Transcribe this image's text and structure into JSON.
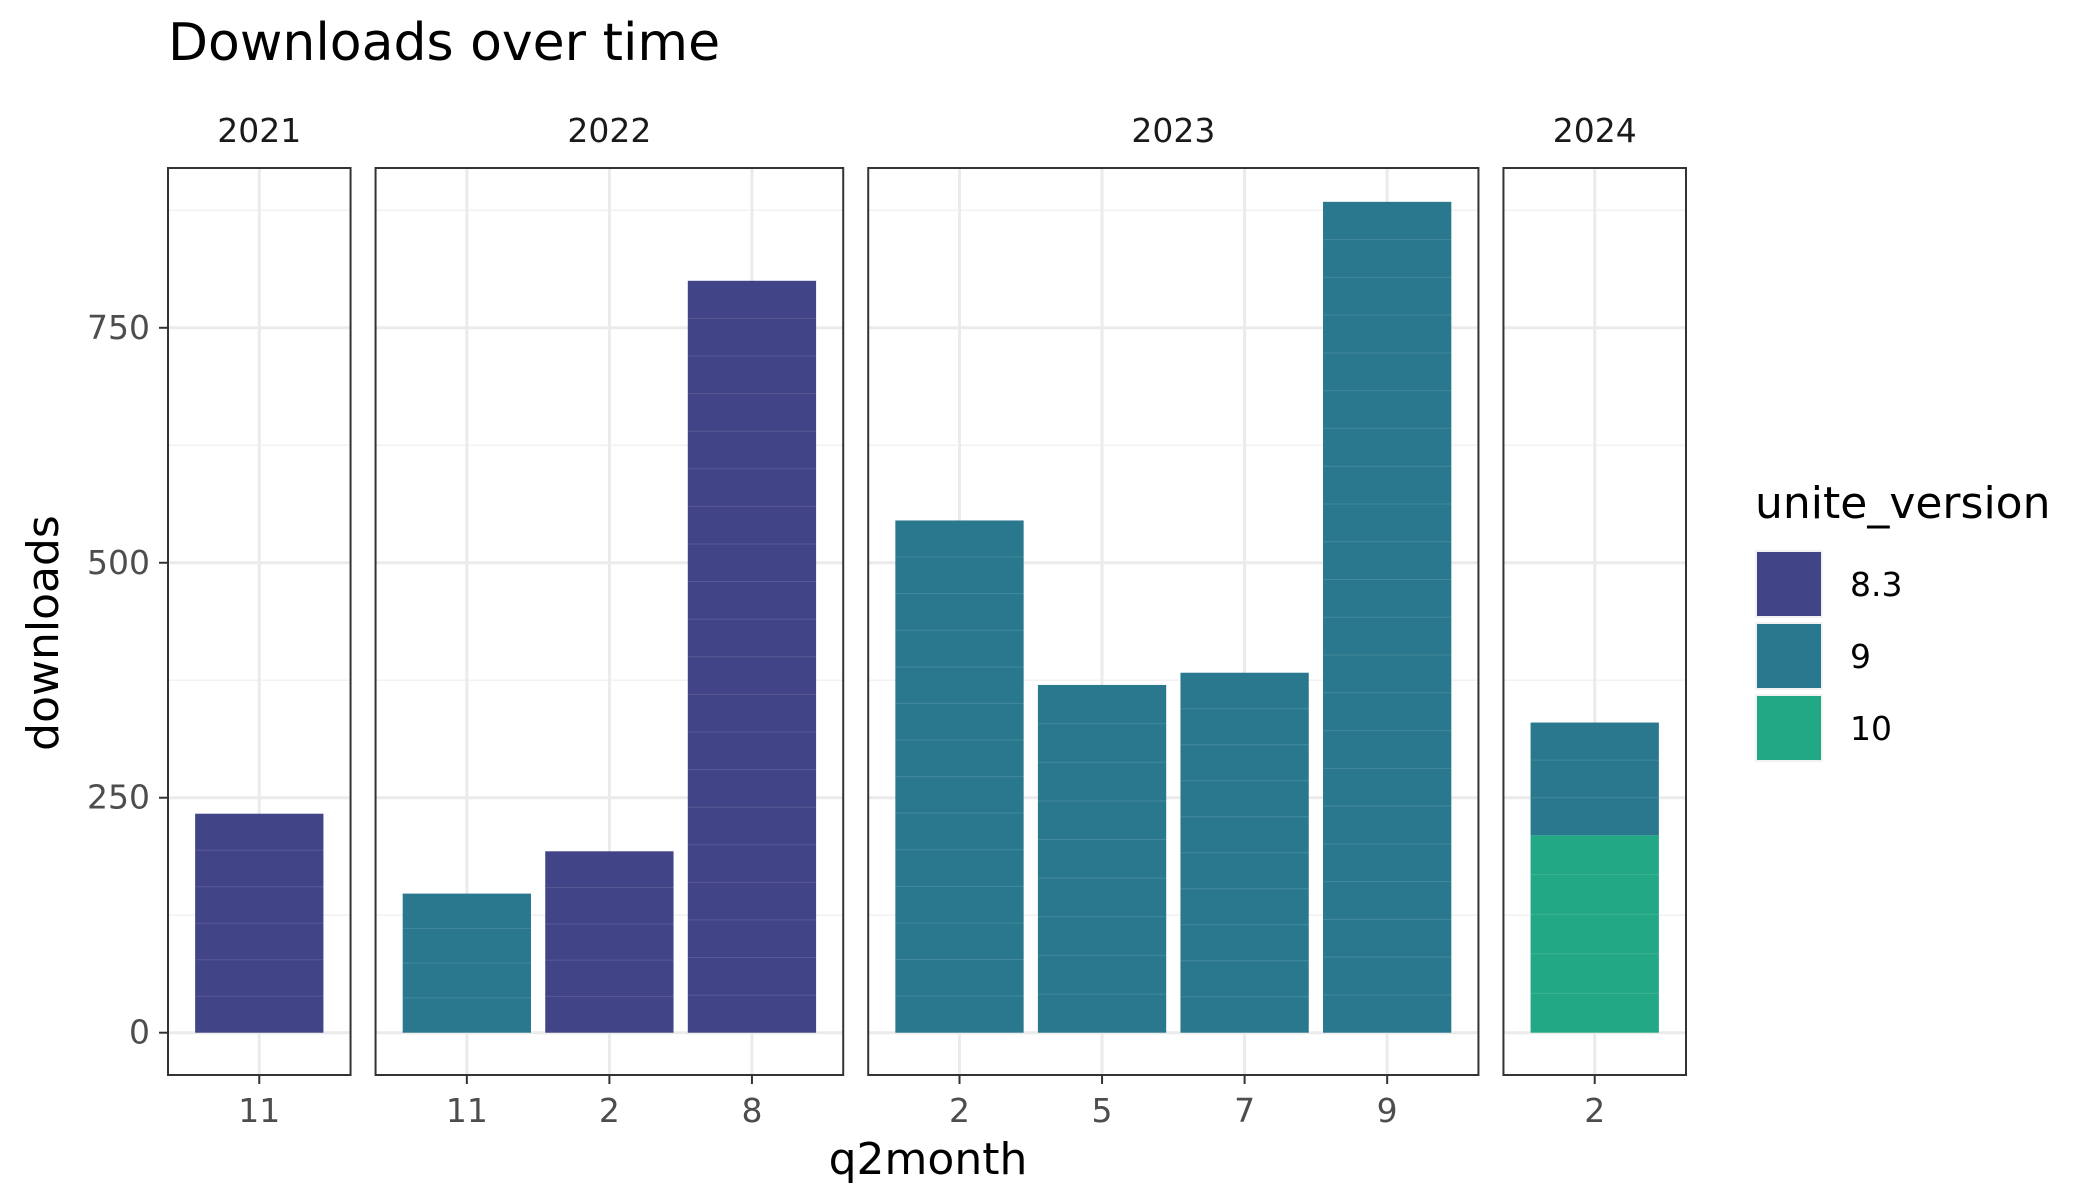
{
  "chart_data": {
    "type": "bar",
    "title": "Downloads over time",
    "xlabel": "q2month",
    "ylabel": "downloads",
    "ylim": [
      -45,
      920
    ],
    "yticks": [
      0,
      250,
      500,
      750
    ],
    "grid": true,
    "stacked": true,
    "facet_by": "year",
    "legend": {
      "title": "unite_version",
      "position": "right",
      "entries": [
        {
          "label": "8.3",
          "color": "#414487"
        },
        {
          "label": "9",
          "color": "#2A788E"
        },
        {
          "label": "10",
          "color": "#22A884"
        }
      ]
    },
    "facets": [
      {
        "label": "2021",
        "categories": [
          "11"
        ],
        "bars": [
          {
            "category": "11",
            "segments": [
              {
                "version": "8.3",
                "value": 233
              }
            ]
          }
        ]
      },
      {
        "label": "2022",
        "categories": [
          "11",
          "2",
          "8"
        ],
        "bars": [
          {
            "category": "11",
            "segments": [
              {
                "version": "9",
                "value": 148
              }
            ]
          },
          {
            "category": "2",
            "segments": [
              {
                "version": "8.3",
                "value": 193
              }
            ]
          },
          {
            "category": "8",
            "segments": [
              {
                "version": "8.3",
                "value": 800
              }
            ]
          }
        ]
      },
      {
        "label": "2023",
        "categories": [
          "2",
          "5",
          "7",
          "9"
        ],
        "bars": [
          {
            "category": "2",
            "segments": [
              {
                "version": "9",
                "value": 545
              }
            ]
          },
          {
            "category": "5",
            "segments": [
              {
                "version": "9",
                "value": 370
              }
            ]
          },
          {
            "category": "7",
            "segments": [
              {
                "version": "9",
                "value": 383
              }
            ]
          },
          {
            "category": "9",
            "segments": [
              {
                "version": "9",
                "value": 884
              }
            ]
          }
        ]
      },
      {
        "label": "2024",
        "categories": [
          "2"
        ],
        "bars": [
          {
            "category": "2",
            "segments": [
              {
                "version": "10",
                "value": 210
              },
              {
                "version": "9",
                "value": 120
              }
            ]
          }
        ]
      }
    ]
  }
}
